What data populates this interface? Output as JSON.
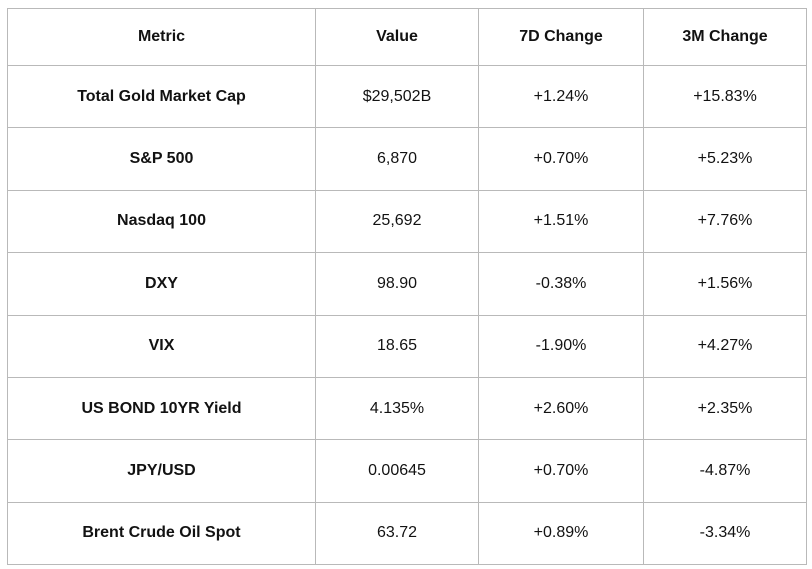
{
  "table": {
    "columns": {
      "metric": "Metric",
      "value": "Value",
      "change_7d": "7D Change",
      "change_3m": "3M Change"
    },
    "rows": [
      {
        "metric": "Total Gold Market Cap",
        "value": "$29,502B",
        "change_7d": "+1.24%",
        "change_3m": "+15.83%"
      },
      {
        "metric": "S&P 500",
        "value": "6,870",
        "change_7d": "+0.70%",
        "change_3m": "+5.23%"
      },
      {
        "metric": "Nasdaq 100",
        "value": "25,692",
        "change_7d": "+1.51%",
        "change_3m": "+7.76%"
      },
      {
        "metric": "DXY",
        "value": "98.90",
        "change_7d": "-0.38%",
        "change_3m": "+1.56%"
      },
      {
        "metric": "VIX",
        "value": "18.65",
        "change_7d": "-1.90%",
        "change_3m": "+4.27%"
      },
      {
        "metric": "US BOND 10YR Yield",
        "value": "4.135%",
        "change_7d": "+2.60%",
        "change_3m": "+2.35%"
      },
      {
        "metric": "JPY/USD",
        "value": "0.00645",
        "change_7d": "+0.70%",
        "change_3m": "-4.87%"
      },
      {
        "metric": "Brent Crude Oil Spot",
        "value": "63.72",
        "change_7d": "+0.89%",
        "change_3m": "-3.34%"
      }
    ]
  }
}
